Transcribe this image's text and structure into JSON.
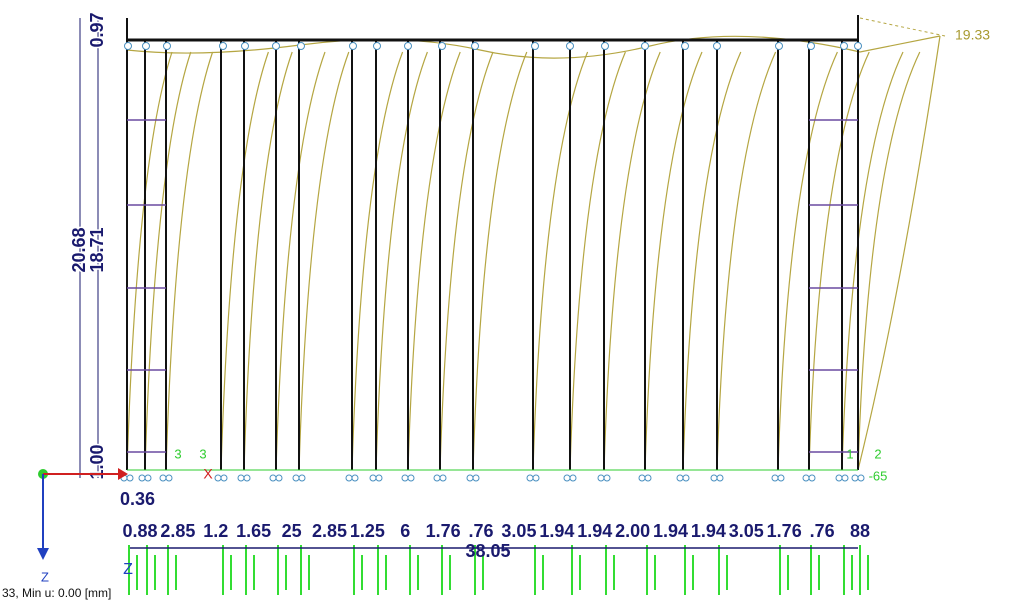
{
  "dimensions": {
    "left": [
      "0.97",
      "20.68",
      "18.71",
      "1.00"
    ],
    "top_right": "19.33",
    "x_offset": "0.36",
    "bottom": [
      "0.88",
      "2.85",
      "1.2",
      "1.65",
      "25",
      "2.85",
      "1.25",
      "6",
      "1.76",
      ".76",
      "3.05",
      "1.94",
      "1.94",
      "2.00",
      "1.94",
      "1.94",
      "3.05",
      "1.76",
      ".76",
      "88"
    ],
    "total": "38.05"
  },
  "axes": {
    "x": "X",
    "z": "Z"
  },
  "support_labels": [
    "3",
    "3",
    "1",
    "2",
    "-65"
  ],
  "status": "33, Min u: 0.00 [mm]"
}
